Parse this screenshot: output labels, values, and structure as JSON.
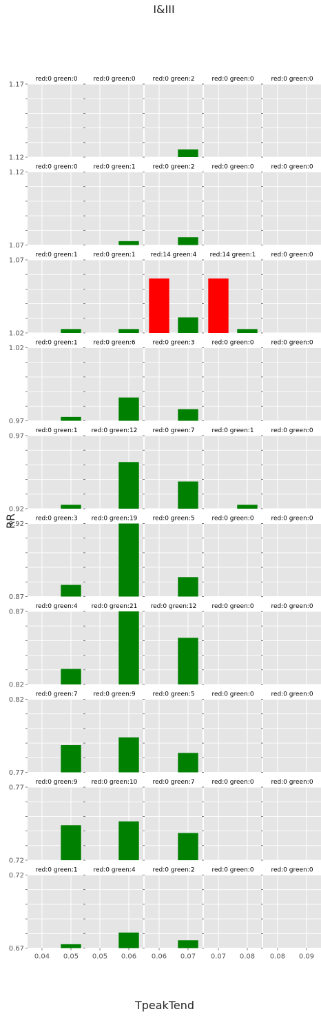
{
  "chart_data": {
    "type": "bar",
    "title": "I&III",
    "xlabel": "TpeakTend",
    "ylabel": "RR",
    "grid": true,
    "colors": {
      "red": "#ff0000",
      "green": "#008000",
      "panel_bg": "#e5e5e5",
      "grid": "#ffffff"
    },
    "cols": [
      {
        "xlim": [
          0.035,
          0.055
        ],
        "ticks": [
          "0.04",
          "0.05"
        ]
      },
      {
        "xlim": [
          0.045,
          0.065
        ],
        "ticks": [
          "0.05",
          "0.06"
        ]
      },
      {
        "xlim": [
          0.055,
          0.075
        ],
        "ticks": [
          "0.06",
          "0.07"
        ]
      },
      {
        "xlim": [
          0.065,
          0.085
        ],
        "ticks": [
          "0.07",
          "0.08"
        ]
      },
      {
        "xlim": [
          0.075,
          0.095
        ],
        "ticks": [
          "0.08",
          "0.09"
        ]
      }
    ],
    "rows": [
      {
        "ylim": [
          1.12,
          1.17
        ],
        "tick_labels": [
          "1.17",
          "1.12"
        ],
        "panels": [
          {
            "title": "red:0 green:0",
            "red": 0,
            "green": 0
          },
          {
            "title": "red:0 green:0",
            "red": 0,
            "green": 0
          },
          {
            "title": "red:0 green:2",
            "red": 0,
            "green": 2
          },
          {
            "title": "red:0 green:0",
            "red": 0,
            "green": 0
          },
          {
            "title": "red:0 green:0",
            "red": 0,
            "green": 0
          }
        ]
      },
      {
        "ylim": [
          1.07,
          1.12
        ],
        "tick_labels": [
          "1.12",
          "1.07"
        ],
        "panels": [
          {
            "title": "red:0 green:0",
            "red": 0,
            "green": 0
          },
          {
            "title": "red:0 green:1",
            "red": 0,
            "green": 1
          },
          {
            "title": "red:0 green:2",
            "red": 0,
            "green": 2
          },
          {
            "title": "red:0 green:0",
            "red": 0,
            "green": 0
          },
          {
            "title": "red:0 green:0",
            "red": 0,
            "green": 0
          }
        ]
      },
      {
        "ylim": [
          1.02,
          1.07
        ],
        "tick_labels": [
          "1.07",
          "1.02"
        ],
        "panels": [
          {
            "title": "red:0 green:1",
            "red": 0,
            "green": 1
          },
          {
            "title": "red:0 green:1",
            "red": 0,
            "green": 1
          },
          {
            "title": "red:14 green:4",
            "red": 14,
            "green": 4
          },
          {
            "title": "red:14 green:1",
            "red": 14,
            "green": 1
          },
          {
            "title": "red:0 green:0",
            "red": 0,
            "green": 0
          }
        ]
      },
      {
        "ylim": [
          0.97,
          1.02
        ],
        "tick_labels": [
          "1.02",
          "0.97"
        ],
        "panels": [
          {
            "title": "red:0 green:1",
            "red": 0,
            "green": 1
          },
          {
            "title": "red:0 green:6",
            "red": 0,
            "green": 6
          },
          {
            "title": "red:0 green:3",
            "red": 0,
            "green": 3
          },
          {
            "title": "red:0 green:0",
            "red": 0,
            "green": 0
          },
          {
            "title": "red:0 green:0",
            "red": 0,
            "green": 0
          }
        ]
      },
      {
        "ylim": [
          0.92,
          0.97
        ],
        "tick_labels": [
          "0.97",
          "0.92"
        ],
        "panels": [
          {
            "title": "red:0 green:1",
            "red": 0,
            "green": 1
          },
          {
            "title": "red:0 green:12",
            "red": 0,
            "green": 12
          },
          {
            "title": "red:0 green:7",
            "red": 0,
            "green": 7
          },
          {
            "title": "red:0 green:1",
            "red": 0,
            "green": 1
          },
          {
            "title": "red:0 green:0",
            "red": 0,
            "green": 0
          }
        ]
      },
      {
        "ylim": [
          0.87,
          0.92
        ],
        "tick_labels": [
          "0.92",
          "0.87"
        ],
        "panels": [
          {
            "title": "red:0 green:3",
            "red": 0,
            "green": 3
          },
          {
            "title": "red:0 green:19",
            "red": 0,
            "green": 19
          },
          {
            "title": "red:0 green:5",
            "red": 0,
            "green": 5
          },
          {
            "title": "red:0 green:0",
            "red": 0,
            "green": 0
          },
          {
            "title": "red:0 green:0",
            "red": 0,
            "green": 0
          }
        ]
      },
      {
        "ylim": [
          0.82,
          0.87
        ],
        "tick_labels": [
          "0.87",
          "0.82"
        ],
        "panels": [
          {
            "title": "red:0 green:4",
            "red": 0,
            "green": 4
          },
          {
            "title": "red:0 green:21",
            "red": 0,
            "green": 21
          },
          {
            "title": "red:0 green:12",
            "red": 0,
            "green": 12
          },
          {
            "title": "red:0 green:0",
            "red": 0,
            "green": 0
          },
          {
            "title": "red:0 green:0",
            "red": 0,
            "green": 0
          }
        ]
      },
      {
        "ylim": [
          0.77,
          0.82
        ],
        "tick_labels": [
          "0.82",
          "0.77"
        ],
        "panels": [
          {
            "title": "red:0 green:7",
            "red": 0,
            "green": 7
          },
          {
            "title": "red:0 green:9",
            "red": 0,
            "green": 9
          },
          {
            "title": "red:0 green:5",
            "red": 0,
            "green": 5
          },
          {
            "title": "red:0 green:0",
            "red": 0,
            "green": 0
          },
          {
            "title": "red:0 green:0",
            "red": 0,
            "green": 0
          }
        ]
      },
      {
        "ylim": [
          0.72,
          0.77
        ],
        "tick_labels": [
          "0.77",
          "0.72"
        ],
        "panels": [
          {
            "title": "red:0 green:9",
            "red": 0,
            "green": 9
          },
          {
            "title": "red:0 green:10",
            "red": 0,
            "green": 10
          },
          {
            "title": "red:0 green:7",
            "red": 0,
            "green": 7
          },
          {
            "title": "red:0 green:0",
            "red": 0,
            "green": 0
          },
          {
            "title": "red:0 green:0",
            "red": 0,
            "green": 0
          }
        ]
      },
      {
        "ylim": [
          0.67,
          0.72
        ],
        "tick_labels": [
          "0.72",
          "0.67"
        ],
        "panels": [
          {
            "title": "red:0 green:1",
            "red": 0,
            "green": 1
          },
          {
            "title": "red:0 green:4",
            "red": 0,
            "green": 4
          },
          {
            "title": "red:0 green:2",
            "red": 0,
            "green": 2
          },
          {
            "title": "red:0 green:0",
            "red": 0,
            "green": 0
          },
          {
            "title": "red:0 green:0",
            "red": 0,
            "green": 0
          }
        ]
      }
    ]
  }
}
